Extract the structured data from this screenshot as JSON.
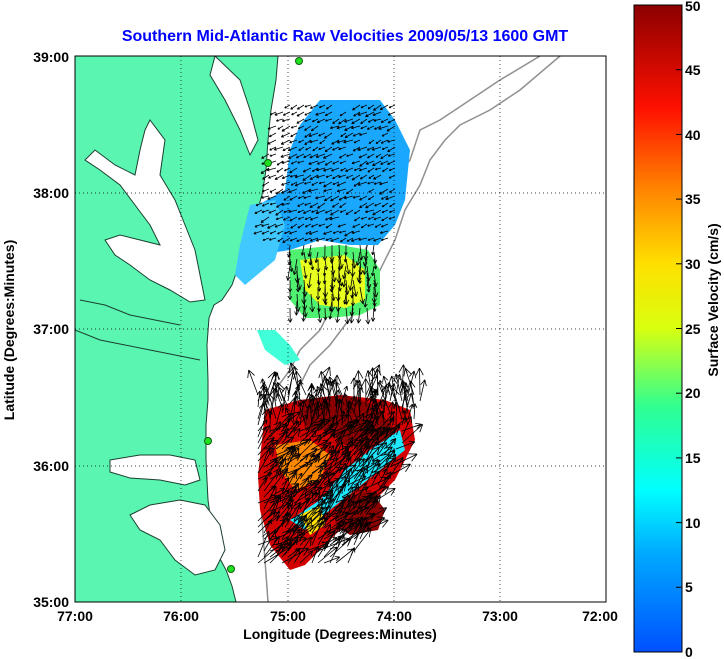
{
  "title": "Southern Mid-Atlantic Raw Velocities 2009/05/13 1600 GMT",
  "title_color": "#0000ff",
  "chart_data": {
    "type": "vector-field-map",
    "xlabel": "Longitude (Degrees:Minutes)",
    "ylabel": "Latitude (Degrees:Minutes)",
    "xlim": [
      -77,
      -72
    ],
    "ylim": [
      35,
      39
    ],
    "x_ticks": [
      "77:00",
      "76:00",
      "75:00",
      "74:00",
      "73:00",
      "72:00"
    ],
    "y_ticks": [
      "39:00",
      "38:00",
      "37:00",
      "36:00",
      "35:00"
    ],
    "grid": "dotted",
    "land_color": "#5af5b0",
    "colorbar": {
      "label": "Surface Velocity (cm/s)",
      "min": 0,
      "max": 50,
      "ticks": [
        "0",
        "5",
        "10",
        "15",
        "20",
        "25",
        "30",
        "35",
        "40",
        "45",
        "50"
      ],
      "colormap": "jet"
    },
    "field_regions": [
      {
        "name": "north-blue",
        "speed_cm_s": 8,
        "direction": "southwest"
      },
      {
        "name": "north-green-yellow",
        "speed_cm_s": 22,
        "direction": "south"
      },
      {
        "name": "south-red",
        "speed_cm_s": 48,
        "direction": "northeast"
      },
      {
        "name": "south-cyan-band",
        "speed_cm_s": 12,
        "direction": "northeast"
      }
    ]
  }
}
